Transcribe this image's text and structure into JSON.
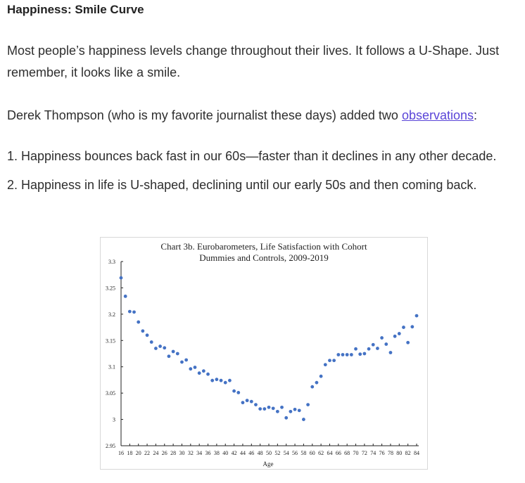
{
  "title": "Happiness: Smile Curve",
  "paragraphs": [
    "Most people’s happiness levels change throughout their lives. It follows a U-Shape. Just remember, it looks like a smile.",
    [
      "Derek Thompson (who is my favorite journalist these days) added two ",
      "observations",
      ":"
    ]
  ],
  "list": [
    "Happiness bounces back fast in our 60s—faster than it declines in any other decade.",
    "Happiness in life is U-shaped, declining until our early 50s and then coming back."
  ],
  "chart_data": {
    "type": "scatter",
    "title": [
      "Chart 3b.  Eurobarometers, Life Satisfaction with Cohort",
      "Dummies and Controls, 2009-2019"
    ],
    "x_label": "Age",
    "color": "#4472c4",
    "xlim": [
      16,
      84
    ],
    "xticks": [
      16,
      18,
      20,
      22,
      24,
      26,
      28,
      30,
      32,
      34,
      36,
      38,
      40,
      42,
      44,
      46,
      48,
      50,
      52,
      54,
      56,
      58,
      60,
      62,
      64,
      66,
      68,
      70,
      72,
      74,
      76,
      78,
      80,
      82,
      84
    ],
    "ylim": [
      2.95,
      3.3
    ],
    "yticks": [
      2.95,
      3,
      3.05,
      3.1,
      3.15,
      3.2,
      3.25,
      3.3
    ],
    "x": [
      16,
      17,
      18,
      19,
      20,
      21,
      22,
      23,
      24,
      25,
      26,
      27,
      28,
      29,
      30,
      31,
      32,
      33,
      34,
      35,
      36,
      37,
      38,
      39,
      40,
      41,
      42,
      43,
      44,
      45,
      46,
      47,
      48,
      49,
      50,
      51,
      52,
      53,
      54,
      55,
      56,
      57,
      58,
      59,
      60,
      61,
      62,
      63,
      64,
      65,
      66,
      67,
      68,
      69,
      70,
      71,
      72,
      73,
      74,
      75,
      76,
      77,
      78,
      79,
      80,
      81,
      82,
      83,
      84
    ],
    "values": [
      3.269,
      3.234,
      3.205,
      3.204,
      3.185,
      3.168,
      3.16,
      3.147,
      3.135,
      3.139,
      3.136,
      3.12,
      3.129,
      3.125,
      3.109,
      3.113,
      3.096,
      3.099,
      3.088,
      3.092,
      3.086,
      3.074,
      3.076,
      3.074,
      3.07,
      3.074,
      3.054,
      3.051,
      3.032,
      3.036,
      3.034,
      3.028,
      3.02,
      3.02,
      3.023,
      3.021,
      3.015,
      3.023,
      3.003,
      3.015,
      3.019,
      3.017,
      3.0,
      3.028,
      3.062,
      3.07,
      3.082,
      3.104,
      3.112,
      3.112,
      3.123,
      3.123,
      3.123,
      3.123,
      3.134,
      3.124,
      3.125,
      3.134,
      3.142,
      3.135,
      3.155,
      3.143,
      3.127,
      3.158,
      3.163,
      3.175,
      3.146,
      3.176,
      3.197
    ]
  }
}
